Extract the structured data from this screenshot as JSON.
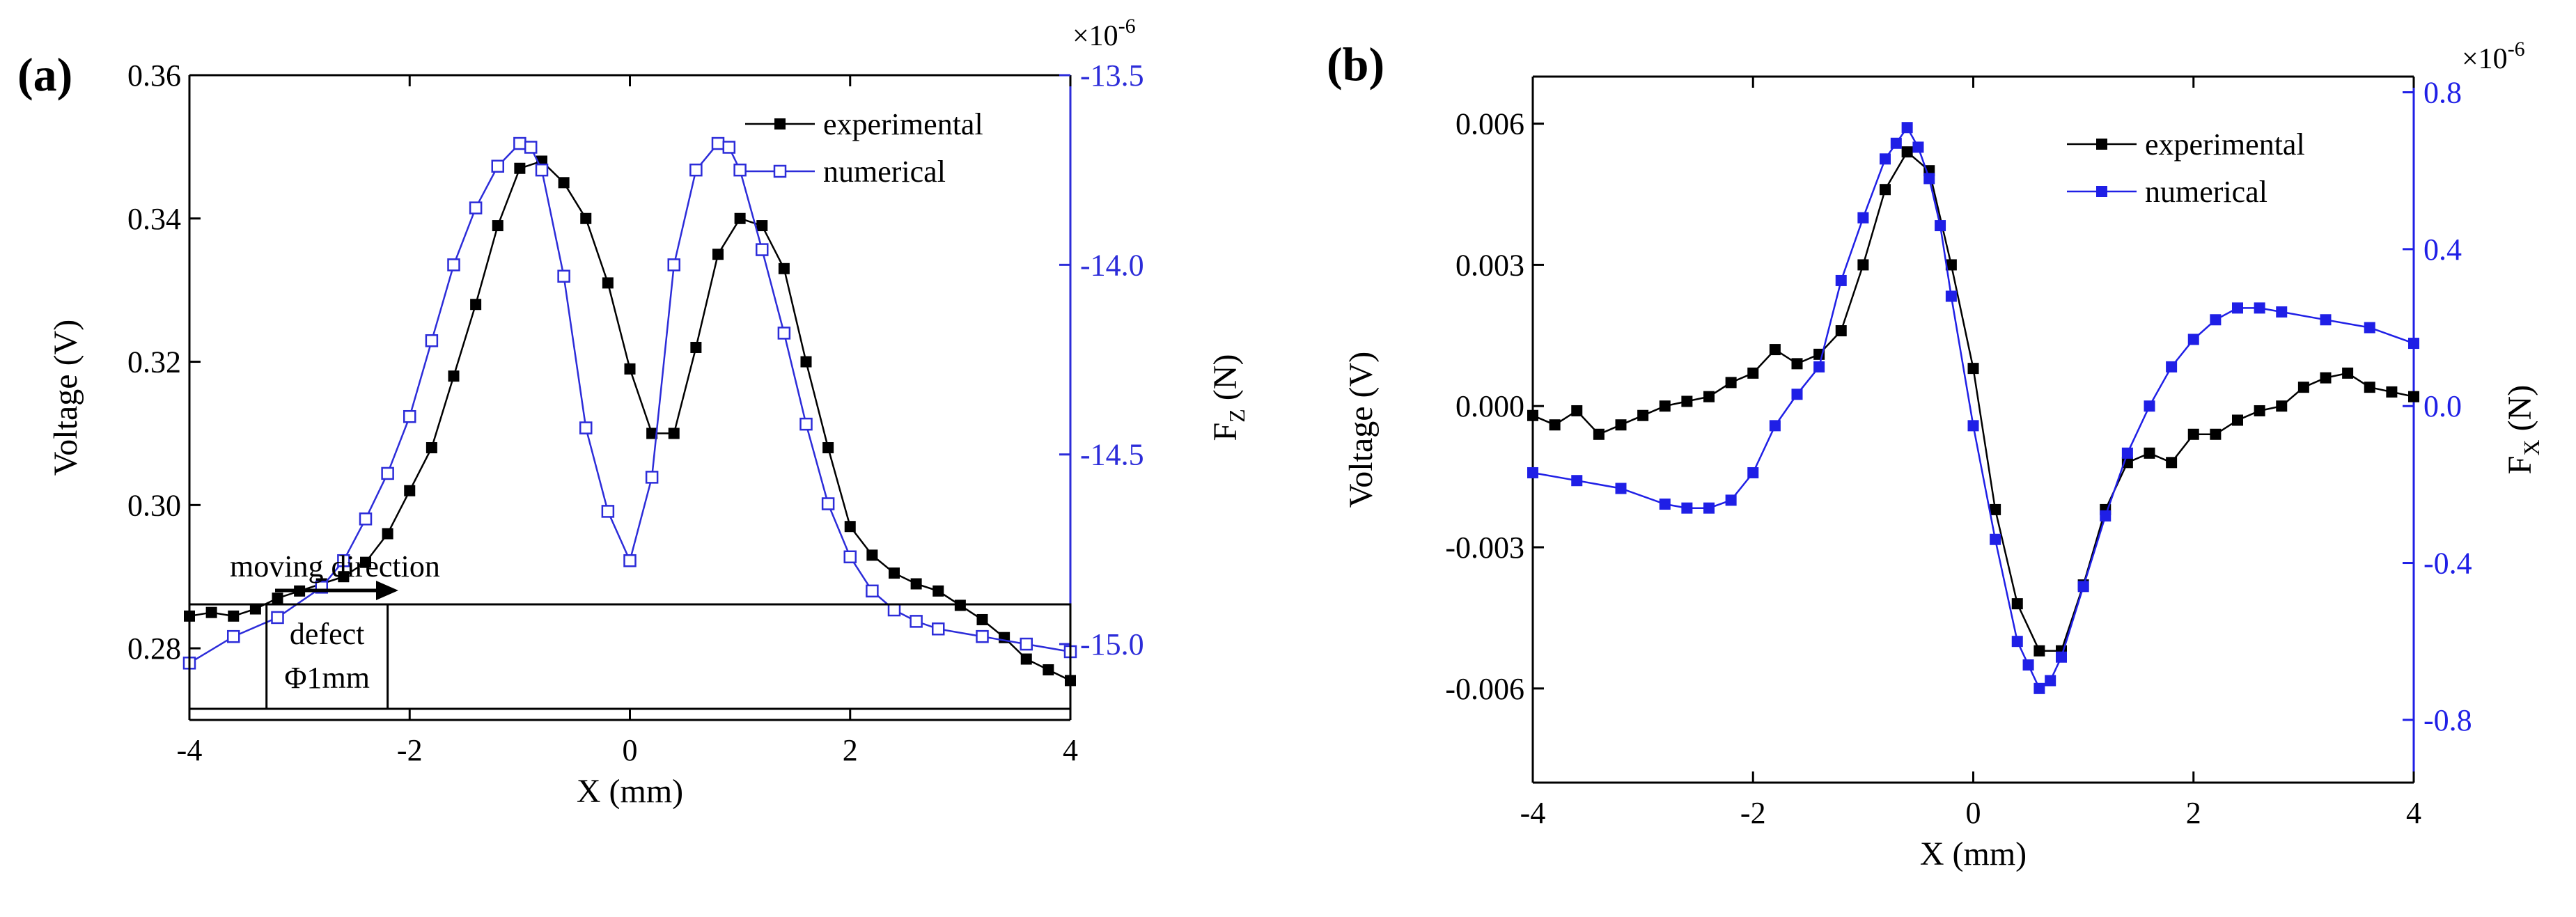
{
  "figure_labels": {
    "a": "(a)",
    "b": "(b)"
  },
  "chart_data": [
    {
      "panel": "(a)",
      "type": "line",
      "xlabel": "X (mm)",
      "ylabel_left": "Voltage (V)",
      "ylabel_right_base": "F",
      "ylabel_right_sub": "Z",
      "ylabel_right_unit": " (N)",
      "right_axis_multiplier": "×10",
      "right_axis_exponent": "-6",
      "xlim": [
        -4,
        4
      ],
      "ylim_left": [
        0.27,
        0.36
      ],
      "ylim_right": [
        -15.2,
        -13.5
      ],
      "xticks": [
        -4,
        -2,
        0,
        2,
        4
      ],
      "xtick_labels": [
        "-4",
        "-2",
        "0",
        "2",
        "4"
      ],
      "yticks_left": [
        0.28,
        0.3,
        0.32,
        0.34,
        0.36
      ],
      "ytick_labels_left": [
        "0.28",
        "0.30",
        "0.32",
        "0.34",
        "0.36"
      ],
      "yticks_right": [
        -15.0,
        -14.5,
        -14.0,
        -13.5
      ],
      "ytick_labels_right": [
        "-15.0",
        "-14.5",
        "-14.0",
        "-13.5"
      ],
      "colors": {
        "experimental": "#000000",
        "numerical": "#2c2cd9",
        "axis_right": "#2c2cd9"
      },
      "legend": [
        "experimental",
        "numerical"
      ],
      "legend_position": "top-right",
      "annotation_arrow": "moving direction",
      "defect_label_1": "defect",
      "defect_label_2": "Φ1mm",
      "series": [
        {
          "name": "experimental",
          "axis": "left",
          "marker": "filled-square",
          "x": [
            -4.0,
            -3.8,
            -3.6,
            -3.4,
            -3.2,
            -3.0,
            -2.8,
            -2.6,
            -2.4,
            -2.2,
            -2.0,
            -1.8,
            -1.6,
            -1.4,
            -1.2,
            -1.0,
            -0.8,
            -0.6,
            -0.4,
            -0.2,
            0.0,
            0.2,
            0.4,
            0.6,
            0.8,
            1.0,
            1.2,
            1.4,
            1.6,
            1.8,
            2.0,
            2.2,
            2.4,
            2.6,
            2.8,
            3.0,
            3.2,
            3.4,
            3.6,
            3.8,
            4.0
          ],
          "y": [
            0.2845,
            0.285,
            0.2845,
            0.2855,
            0.287,
            0.288,
            0.289,
            0.29,
            0.292,
            0.296,
            0.302,
            0.308,
            0.318,
            0.328,
            0.339,
            0.347,
            0.348,
            0.345,
            0.34,
            0.331,
            0.319,
            0.31,
            0.31,
            0.322,
            0.335,
            0.34,
            0.339,
            0.333,
            0.32,
            0.308,
            0.297,
            0.293,
            0.2905,
            0.289,
            0.288,
            0.286,
            0.284,
            0.2815,
            0.2785,
            0.277,
            0.2755
          ]
        },
        {
          "name": "numerical",
          "axis": "right",
          "marker": "open-square",
          "x": [
            -4.0,
            -3.6,
            -3.2,
            -2.8,
            -2.6,
            -2.4,
            -2.2,
            -2.0,
            -1.8,
            -1.6,
            -1.4,
            -1.2,
            -1.0,
            -0.9,
            -0.8,
            -0.6,
            -0.4,
            -0.2,
            0.0,
            0.2,
            0.4,
            0.6,
            0.8,
            0.9,
            1.0,
            1.2,
            1.4,
            1.6,
            1.8,
            2.0,
            2.2,
            2.4,
            2.6,
            2.8,
            3.2,
            3.6,
            4.0
          ],
          "y": [
            -15.05,
            -14.98,
            -14.93,
            -14.85,
            -14.78,
            -14.67,
            -14.55,
            -14.4,
            -14.2,
            -14.0,
            -13.85,
            -13.74,
            -13.68,
            -13.69,
            -13.75,
            -14.03,
            -14.43,
            -14.65,
            -14.78,
            -14.56,
            -14.0,
            -13.75,
            -13.68,
            -13.69,
            -13.75,
            -13.96,
            -14.18,
            -14.42,
            -14.63,
            -14.77,
            -14.86,
            -14.91,
            -14.94,
            -14.96,
            -14.98,
            -15.0,
            -15.02
          ]
        }
      ]
    },
    {
      "panel": "(b)",
      "type": "line",
      "xlabel": "X (mm)",
      "ylabel_left": "Voltage (V)",
      "ylabel_right_base": "F",
      "ylabel_right_sub": "X",
      "ylabel_right_unit": " (N)",
      "right_axis_multiplier": "×10",
      "right_axis_exponent": "-6",
      "xlim": [
        -4,
        4
      ],
      "ylim_left": [
        -0.008,
        0.007
      ],
      "ylim_right": [
        -0.96,
        0.84
      ],
      "xticks": [
        -4,
        -2,
        0,
        2,
        4
      ],
      "xtick_labels": [
        "-4",
        "-2",
        "0",
        "2",
        "4"
      ],
      "yticks_left": [
        -0.006,
        -0.003,
        0.0,
        0.003,
        0.006
      ],
      "ytick_labels_left": [
        "-0.006",
        "-0.003",
        "0.000",
        "0.003",
        "0.006"
      ],
      "yticks_right": [
        -0.8,
        -0.4,
        0.0,
        0.4,
        0.8
      ],
      "ytick_labels_right": [
        "-0.8",
        "-0.4",
        "0.0",
        "0.4",
        "0.8"
      ],
      "colors": {
        "experimental": "#000000",
        "numerical": "#1f1fe6",
        "axis_right": "#1f1fe6"
      },
      "legend": [
        "experimental",
        "numerical"
      ],
      "legend_position": "top-right",
      "series": [
        {
          "name": "experimental",
          "axis": "left",
          "marker": "filled-square",
          "x": [
            -4.0,
            -3.8,
            -3.6,
            -3.4,
            -3.2,
            -3.0,
            -2.8,
            -2.6,
            -2.4,
            -2.2,
            -2.0,
            -1.8,
            -1.6,
            -1.4,
            -1.2,
            -1.0,
            -0.8,
            -0.6,
            -0.4,
            -0.2,
            0.0,
            0.2,
            0.4,
            0.6,
            0.8,
            1.0,
            1.2,
            1.4,
            1.6,
            1.8,
            2.0,
            2.2,
            2.4,
            2.6,
            2.8,
            3.0,
            3.2,
            3.4,
            3.6,
            3.8,
            4.0
          ],
          "y": [
            -0.0002,
            -0.0004,
            -0.0001,
            -0.0006,
            -0.0004,
            -0.0002,
            0.0,
            0.0001,
            0.0002,
            0.0005,
            0.0007,
            0.0012,
            0.0009,
            0.0011,
            0.0016,
            0.003,
            0.0046,
            0.0054,
            0.005,
            0.003,
            0.0008,
            -0.0022,
            -0.0042,
            -0.0052,
            -0.0052,
            -0.0038,
            -0.0022,
            -0.0012,
            -0.001,
            -0.0012,
            -0.0006,
            -0.0006,
            -0.0003,
            -0.0001,
            0.0,
            0.0004,
            0.0006,
            0.0007,
            0.0004,
            0.0003,
            0.0002
          ]
        },
        {
          "name": "numerical",
          "axis": "right",
          "marker": "filled-square",
          "x": [
            -4.0,
            -3.6,
            -3.2,
            -2.8,
            -2.6,
            -2.4,
            -2.2,
            -2.0,
            -1.8,
            -1.6,
            -1.4,
            -1.2,
            -1.0,
            -0.8,
            -0.7,
            -0.6,
            -0.5,
            -0.4,
            -0.3,
            -0.2,
            0.0,
            0.2,
            0.4,
            0.5,
            0.6,
            0.7,
            0.8,
            1.0,
            1.2,
            1.4,
            1.6,
            1.8,
            2.0,
            2.2,
            2.4,
            2.6,
            2.8,
            3.2,
            3.6,
            4.0
          ],
          "y": [
            -0.17,
            -0.19,
            -0.21,
            -0.25,
            -0.26,
            -0.26,
            -0.24,
            -0.17,
            -0.05,
            0.03,
            0.1,
            0.32,
            0.48,
            0.63,
            0.67,
            0.71,
            0.66,
            0.58,
            0.46,
            0.28,
            -0.05,
            -0.34,
            -0.6,
            -0.66,
            -0.72,
            -0.7,
            -0.64,
            -0.46,
            -0.28,
            -0.12,
            0.0,
            0.1,
            0.17,
            0.22,
            0.25,
            0.25,
            0.24,
            0.22,
            0.2,
            0.16
          ]
        }
      ]
    }
  ]
}
